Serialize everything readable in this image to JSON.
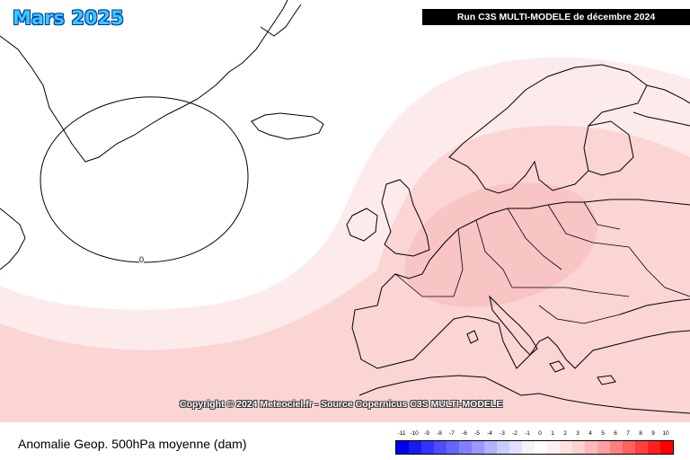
{
  "map_title": "Mars 2025",
  "run_label": "Run C3S MULTI-MODELE de décembre 2024",
  "copyright": "Copyright © 2024 Meteociel.fr - Source Copernicus C3S MULTI-MODELE",
  "variable_label": "Anomalie Geop. 500hPa moyenne (dam)",
  "contour_label": "0",
  "legend": {
    "ticks": [
      "-11",
      "-10",
      "-9",
      "-8",
      "-7",
      "-6",
      "-5",
      "-4",
      "-3",
      "-2",
      "-1",
      "0",
      "1",
      "2",
      "3",
      "4",
      "5",
      "6",
      "7",
      "8",
      "9",
      "10"
    ],
    "colors": [
      "#0000ee",
      "#1a1af5",
      "#3333ff",
      "#4d4dff",
      "#6666ff",
      "#8080ff",
      "#9999ff",
      "#b3b3ff",
      "#ccccff",
      "#e0e0ff",
      "#f2f2ff",
      "#ffffff",
      "#fff0f0",
      "#ffe0e0",
      "#ffd0d0",
      "#ffb8b8",
      "#ffa0a0",
      "#ff8080",
      "#ff6060",
      "#ff4040",
      "#ff2020",
      "#ff0000"
    ]
  },
  "anomaly_fill_colors": {
    "level1": "#fdeaea",
    "level2": "#fbd4d4",
    "level3": "#f8c4c4"
  }
}
